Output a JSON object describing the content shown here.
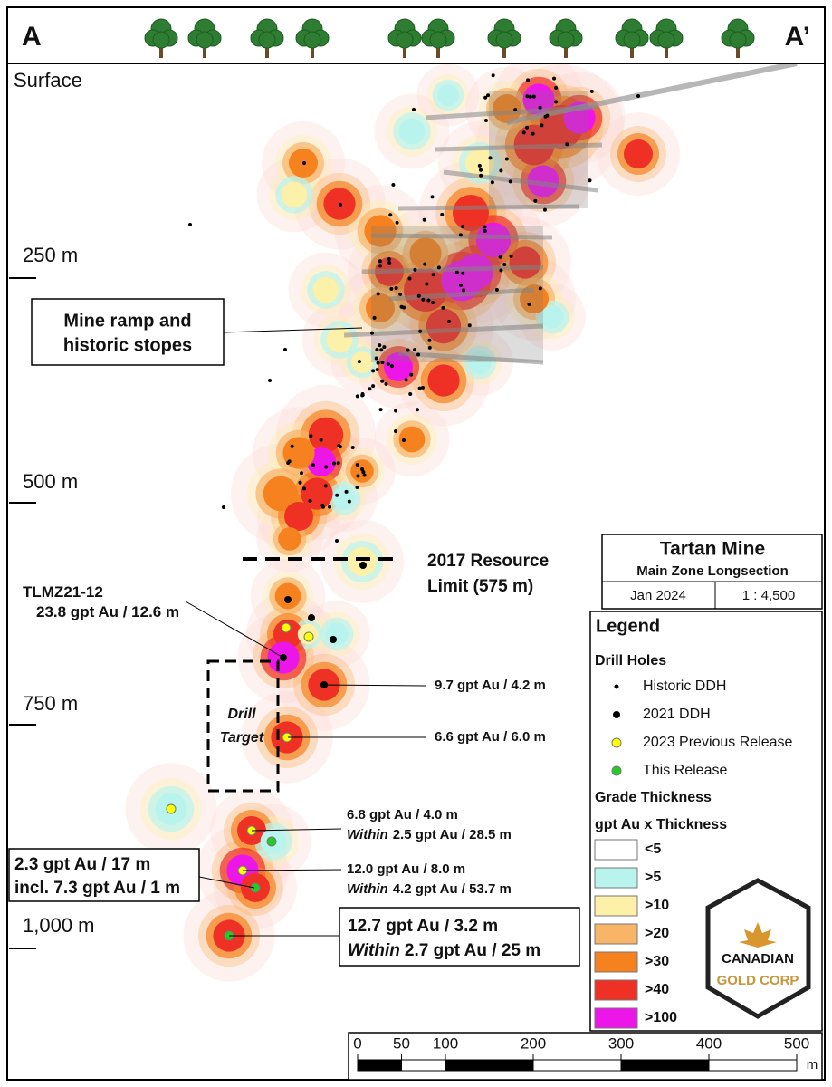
{
  "section_ends": {
    "left": "A",
    "right": "A’"
  },
  "surface_label": "Surface",
  "depth_labels": [
    "250 m",
    "500 m",
    "750 m",
    "1,000 m"
  ],
  "callouts": {
    "mine_ramp": [
      "Mine ramp and",
      "historic stopes"
    ],
    "resource_limit": [
      "2017 Resource",
      "Limit (575 m)"
    ],
    "drill_target": [
      "Drill",
      "Target"
    ]
  },
  "intercepts": [
    {
      "lines": [
        {
          "text": "TLMZ21-12"
        },
        {
          "text": "23.8 gpt Au / 12.6 m"
        }
      ]
    },
    {
      "lines": [
        {
          "text": "9.7 gpt Au / 4.2 m"
        }
      ]
    },
    {
      "lines": [
        {
          "text": "6.6 gpt Au / 6.0 m"
        }
      ]
    },
    {
      "lines": [
        {
          "text": "6.8 gpt Au / 4.0 m"
        },
        {
          "emphasis": "Within",
          "text": "2.5 gpt Au / 28.5 m"
        }
      ]
    },
    {
      "lines": [
        {
          "text": "2.3 gpt Au / 17 m"
        },
        {
          "text": "incl. 7.3 gpt Au / 1 m"
        }
      ]
    },
    {
      "lines": [
        {
          "text": "12.0 gpt Au / 8.0 m"
        },
        {
          "emphasis": "Within",
          "text": "4.2 gpt Au / 53.7 m"
        }
      ]
    },
    {
      "lines": [
        {
          "text": "12.7 gpt Au / 3.2 m"
        },
        {
          "emphasis": "Within",
          "text": "2.7 gpt Au / 25 m"
        }
      ]
    }
  ],
  "title_block": {
    "title": "Tartan Mine",
    "subtitle": "Main Zone Longsection",
    "date": "Jan 2024",
    "scale": "1 : 4,500"
  },
  "legend": {
    "title": "Legend",
    "drill_holes": {
      "heading": "Drill Holes",
      "items": [
        {
          "label": "Historic DDH",
          "color": "#000000"
        },
        {
          "label": "2021 DDH",
          "color": "#000000"
        },
        {
          "label": "2023 Previous Release",
          "color": "#ffff00"
        },
        {
          "label": "This Release",
          "color": "#22cc22"
        }
      ]
    },
    "grade": {
      "heading": "Grade Thickness",
      "subheading": "gpt Au x Thickness",
      "classes": [
        {
          "label": "<5",
          "color": "#ffffff"
        },
        {
          "label": ">5",
          "color": "#b9f3ee"
        },
        {
          "label": ">10",
          "color": "#fdf0a8"
        },
        {
          "label": ">20",
          "color": "#f8b467"
        },
        {
          "label": ">30",
          "color": "#f5821f"
        },
        {
          "label": ">40",
          "color": "#ee3124"
        },
        {
          "label": ">100",
          "color": "#ec16e8"
        }
      ]
    }
  },
  "logo": {
    "line1": "CANADIAN",
    "line2": "GOLD CORP"
  },
  "scale_bar": {
    "ticks": [
      0,
      50,
      100,
      200,
      300,
      400,
      500
    ],
    "unit": "m"
  }
}
